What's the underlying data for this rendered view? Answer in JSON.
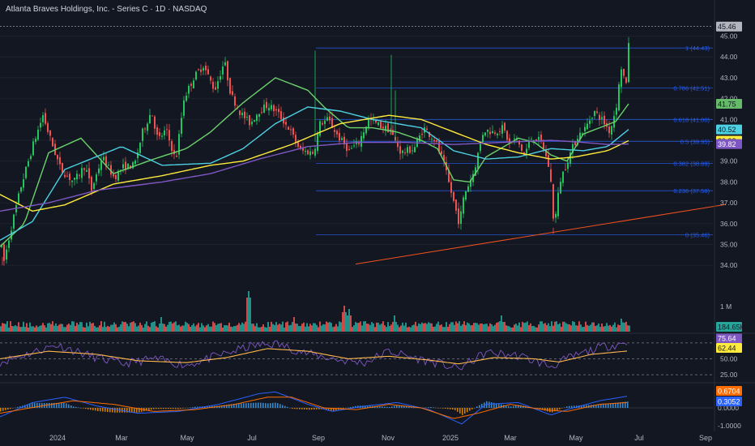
{
  "header": {
    "title": "Atlanta Braves Holdings, Inc. - Series C · 1D · NASDAQ"
  },
  "colors": {
    "bg": "#131722",
    "up": "#26a69a",
    "down": "#ef5350",
    "candle_up": "#22c55e",
    "candle_down": "#ef5350",
    "ma_fast": "#6bd36b",
    "ma_mid": "#4dd0e1",
    "ma_slow": "#ffeb3b",
    "ma_long": "#7e57c2",
    "fib": "#2962ff",
    "trend": "#f4511e",
    "rsi": "#7e57c2",
    "rsi_ma": "#ffb74d",
    "macd": "#2962ff",
    "signal": "#ff6d00",
    "axis_text": "#b2b5be"
  },
  "chart_data": [
    {
      "type": "candlestick",
      "title": "Atlanta Braves Holdings, Inc. - Series C · 1D · NASDAQ",
      "x_ticks": [
        "2024",
        "Mar",
        "May",
        "Jul",
        "Sep",
        "Nov",
        "2025",
        "Mar",
        "May",
        "Jul",
        "Sep"
      ],
      "y_ticks": [
        "34.00",
        "35.00",
        "36.00",
        "37.00",
        "38.00",
        "39.00",
        "40.00",
        "41.00",
        "42.00",
        "43.00",
        "44.00",
        "45.00"
      ],
      "ylim": [
        33.5,
        45.8
      ],
      "key_prices": {
        "last": 45.46,
        "low_2024_start": 34.0,
        "high_2024_sep": 44.3,
        "low_2025_mar": 35.5
      },
      "fibonacci": [
        {
          "label": "1 (44.43)",
          "value": 44.43
        },
        {
          "label": "0.786 (42.51)",
          "value": 42.51
        },
        {
          "label": "0.618 (41.00)",
          "value": 41.0
        },
        {
          "label": "0.5 (39.95)",
          "value": 39.95
        },
        {
          "label": "0.382 (38.89)",
          "value": 38.89
        },
        {
          "label": "0.236 (37.58)",
          "value": 37.58
        },
        {
          "label": "0 (35.46)",
          "value": 35.46
        }
      ],
      "price_badges": [
        {
          "text": "45.46",
          "value": 45.46,
          "color": "#b2b5be",
          "text_color": "#131722"
        },
        {
          "text": "41.75",
          "value": 41.75,
          "color": "#66bb6a",
          "text_color": "#131722"
        },
        {
          "text": "40.52",
          "value": 40.52,
          "color": "#4dd0e1",
          "text_color": "#131722"
        },
        {
          "text": "39.98",
          "value": 39.98,
          "color": "#ffeb3b",
          "text_color": "#131722"
        },
        {
          "text": "39.82",
          "value": 39.82,
          "color": "#7e57c2",
          "text_color": "#ffffff"
        }
      ],
      "anchors": [
        [
          0,
          35.0
        ],
        [
          4,
          34.2
        ],
        [
          14,
          36.0
        ],
        [
          25,
          37.8
        ],
        [
          40,
          39.8
        ],
        [
          52,
          41.2
        ],
        [
          60,
          40.2
        ],
        [
          74,
          38.6
        ],
        [
          90,
          38.0
        ],
        [
          104,
          38.8
        ],
        [
          112,
          37.6
        ],
        [
          125,
          39.2
        ],
        [
          140,
          38.2
        ],
        [
          150,
          38.7
        ],
        [
          165,
          38.8
        ],
        [
          175,
          40.4
        ],
        [
          186,
          41.4
        ],
        [
          194,
          40.0
        ],
        [
          204,
          40.5
        ],
        [
          216,
          39.0
        ],
        [
          226,
          42.0
        ],
        [
          238,
          43.0
        ],
        [
          250,
          43.6
        ],
        [
          264,
          42.4
        ],
        [
          276,
          43.8
        ],
        [
          284,
          42.2
        ],
        [
          296,
          41.3
        ],
        [
          308,
          40.8
        ],
        [
          318,
          41.4
        ],
        [
          330,
          41.7
        ],
        [
          342,
          41.3
        ],
        [
          355,
          40.6
        ],
        [
          370,
          39.5
        ],
        [
          386,
          39.4
        ],
        [
          394,
          40.8
        ],
        [
          404,
          41.0
        ],
        [
          416,
          40.2
        ],
        [
          430,
          39.5
        ],
        [
          442,
          39.9
        ],
        [
          454,
          41.0
        ],
        [
          468,
          40.7
        ],
        [
          480,
          40.5
        ],
        [
          494,
          39.4
        ],
        [
          510,
          39.6
        ],
        [
          522,
          40.6
        ],
        [
          536,
          40.0
        ],
        [
          546,
          39.0
        ],
        [
          556,
          37.5
        ],
        [
          566,
          36.0
        ],
        [
          572,
          37.4
        ],
        [
          584,
          38.5
        ],
        [
          596,
          40.5
        ],
        [
          608,
          40.4
        ],
        [
          620,
          40.6
        ],
        [
          628,
          39.8
        ],
        [
          636,
          40.1
        ],
        [
          646,
          39.3
        ],
        [
          656,
          40.2
        ],
        [
          668,
          39.9
        ],
        [
          678,
          38.5
        ],
        [
          683,
          35.8
        ],
        [
          690,
          38.0
        ],
        [
          700,
          39.1
        ],
        [
          712,
          40.2
        ],
        [
          722,
          40.6
        ],
        [
          732,
          41.4
        ],
        [
          742,
          41.0
        ],
        [
          752,
          40.4
        ],
        [
          760,
          41.7
        ],
        [
          766,
          43.5
        ],
        [
          772,
          42.6
        ],
        [
          776,
          45.46
        ]
      ],
      "overlays": [
        {
          "name": "fast-ma",
          "color": "#6bd36b",
          "pts": [
            [
              0,
              34.9
            ],
            [
              30,
              36.0
            ],
            [
              60,
              39.4
            ],
            [
              100,
              40.1
            ],
            [
              140,
              38.4
            ],
            [
              190,
              39.1
            ],
            [
              230,
              39.6
            ],
            [
              260,
              40.4
            ],
            [
              300,
              41.8
            ],
            [
              340,
              43.0
            ],
            [
              380,
              42.4
            ],
            [
              400,
              41.6
            ],
            [
              430,
              40.6
            ],
            [
              460,
              40.6
            ],
            [
              490,
              40.4
            ],
            [
              520,
              40.0
            ],
            [
              540,
              39.6
            ],
            [
              560,
              38.1
            ],
            [
              580,
              38.0
            ],
            [
              600,
              39.2
            ],
            [
              640,
              40.1
            ],
            [
              660,
              39.9
            ],
            [
              680,
              39.3
            ],
            [
              700,
              39.0
            ],
            [
              720,
              40.3
            ],
            [
              740,
              40.6
            ],
            [
              760,
              40.9
            ],
            [
              776,
              41.75
            ]
          ]
        },
        {
          "name": "mid-ma",
          "color": "#4dd0e1",
          "pts": [
            [
              0,
              35.2
            ],
            [
              40,
              36.1
            ],
            [
              80,
              38.6
            ],
            [
              150,
              39.7
            ],
            [
              200,
              38.8
            ],
            [
              260,
              38.9
            ],
            [
              300,
              39.6
            ],
            [
              340,
              40.8
            ],
            [
              380,
              41.6
            ],
            [
              420,
              41.4
            ],
            [
              460,
              41.0
            ],
            [
              520,
              40.6
            ],
            [
              560,
              39.5
            ],
            [
              600,
              39.1
            ],
            [
              640,
              39.2
            ],
            [
              680,
              39.6
            ],
            [
              720,
              39.5
            ],
            [
              750,
              39.7
            ],
            [
              776,
              40.52
            ]
          ]
        },
        {
          "name": "slow-ma",
          "color": "#ffeb3b",
          "pts": [
            [
              0,
              37.4
            ],
            [
              40,
              36.6
            ],
            [
              80,
              36.9
            ],
            [
              140,
              37.9
            ],
            [
              200,
              38.3
            ],
            [
              260,
              38.8
            ],
            [
              300,
              39.0
            ],
            [
              360,
              39.8
            ],
            [
              420,
              40.8
            ],
            [
              480,
              41.2
            ],
            [
              520,
              41.0
            ],
            [
              560,
              40.4
            ],
            [
              600,
              39.8
            ],
            [
              640,
              39.4
            ],
            [
              680,
              39.1
            ],
            [
              710,
              39.2
            ],
            [
              750,
              39.5
            ],
            [
              776,
              39.98
            ]
          ]
        },
        {
          "name": "long-ma",
          "color": "#7e57c2",
          "pts": [
            [
              0,
              36.6
            ],
            [
              60,
              37.0
            ],
            [
              120,
              37.6
            ],
            [
              200,
              38.0
            ],
            [
              260,
              38.4
            ],
            [
              320,
              39.1
            ],
            [
              380,
              39.7
            ],
            [
              440,
              39.9
            ],
            [
              500,
              39.9
            ],
            [
              560,
              39.8
            ],
            [
              620,
              39.9
            ],
            [
              680,
              40.0
            ],
            [
              720,
              39.9
            ],
            [
              750,
              39.8
            ],
            [
              776,
              39.82
            ]
          ]
        }
      ],
      "trendline": {
        "from": [
          439,
          34.06
        ],
        "to": [
          896,
          36.92
        ]
      }
    },
    {
      "type": "volume",
      "y_ticks": [
        "1 M"
      ],
      "badge": "184.65K",
      "badge_color": "#26a69a"
    },
    {
      "type": "rsi",
      "levels": [
        75,
        50,
        25
      ],
      "y_ticks": [
        "50.00",
        "25.00"
      ],
      "badges": [
        {
          "text": "75.64",
          "color": "#7e57c2",
          "text_color": "#ffffff"
        },
        {
          "text": "62.44",
          "color": "#ffeb3b",
          "text_color": "#131722"
        }
      ]
    },
    {
      "type": "macd",
      "y_ticks": [
        "0.0000",
        "-1.0000"
      ],
      "badges": [
        {
          "text": "0.6704",
          "color": "#ff6d00",
          "text_color": "#ffffff"
        },
        {
          "text": "0.3052",
          "color": "#2962ff",
          "text_color": "#ffffff"
        }
      ]
    }
  ]
}
